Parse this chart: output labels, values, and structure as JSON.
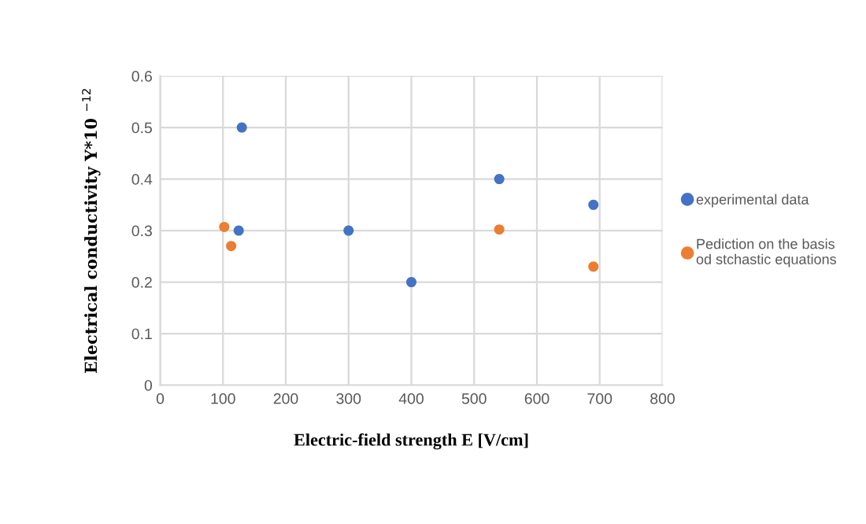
{
  "chart_data": {
    "type": "scatter",
    "xlabel": "Electric-field strength E [V/cm]",
    "ylabel": "Electrical conductivity Y*10 $^{−12}$",
    "xlim": [
      0,
      800
    ],
    "xticks": [
      0,
      100,
      200,
      300,
      400,
      500,
      600,
      700,
      800
    ],
    "ylim": [
      0,
      0.6
    ],
    "yticks": [
      0,
      0.1,
      0.2,
      0.3,
      0.4,
      0.5,
      0.6
    ],
    "grid": true,
    "legend": "right",
    "marker": "circle",
    "series": [
      {
        "name": "experimental data",
        "color": "#4472c4",
        "x": [
          125,
          130,
          300,
          400,
          540,
          690
        ],
        "values": [
          0.3,
          0.5,
          0.3,
          0.2,
          0.4,
          0.35
        ]
      },
      {
        "name": "Pediction on the basis od stchastic equations",
        "color": "#ed7d31",
        "x": [
          102,
          113,
          540,
          690
        ],
        "values": [
          0.307,
          0.27,
          0.302,
          0.23
        ]
      }
    ]
  }
}
